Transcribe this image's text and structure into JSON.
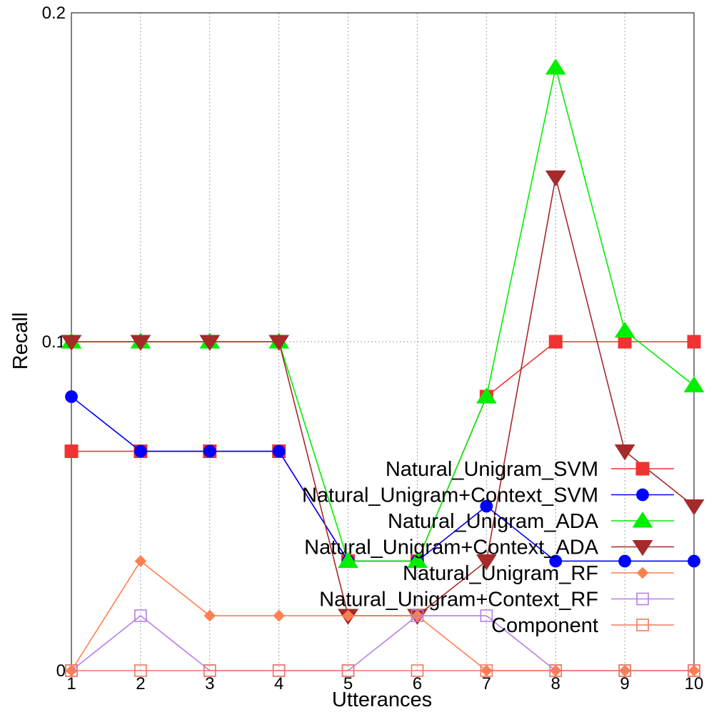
{
  "chart_data": {
    "type": "line",
    "title": "",
    "xlabel": "Utterances",
    "ylabel": "Recall",
    "x": [
      1,
      2,
      3,
      4,
      5,
      6,
      7,
      8,
      9,
      10
    ],
    "x_ticks": [
      "1",
      "2",
      "3",
      "4",
      "5",
      "6",
      "7",
      "8",
      "9",
      "10"
    ],
    "y_ticks": [
      "0",
      "0.1",
      "0.2"
    ],
    "xlim": [
      1,
      10
    ],
    "ylim": [
      0,
      0.2
    ],
    "grid": true,
    "legend_position": "bottom-right",
    "series": [
      {
        "name": "Natural_Unigram_SVM",
        "color": "#f03232",
        "marker": "square-filled",
        "values": [
          0.0667,
          0.0667,
          0.0667,
          0.0667,
          0.0333,
          0.0333,
          0.0833,
          0.1,
          0.1,
          0.1
        ]
      },
      {
        "name": "Natural_Unigram+Context_SVM",
        "color": "#0000ff",
        "marker": "circle-filled",
        "values": [
          0.0833,
          0.0667,
          0.0667,
          0.0667,
          0.0333,
          0.0333,
          0.05,
          0.0333,
          0.0333,
          0.0333
        ]
      },
      {
        "name": "Natural_Unigram_ADA",
        "color": "#00ee00",
        "marker": "triangle-up-filled",
        "values": [
          0.1,
          0.1,
          0.1,
          0.1,
          0.0333,
          0.0333,
          0.0833,
          0.1833,
          0.1033,
          0.0867
        ]
      },
      {
        "name": "Natural_Unigram+Context_ADA",
        "color": "#a52a2a",
        "marker": "triangle-down-filled",
        "values": [
          0.1,
          0.1,
          0.1,
          0.1,
          0.0167,
          0.0167,
          0.0333,
          0.15,
          0.0667,
          0.05
        ]
      },
      {
        "name": "Natural_Unigram_RF",
        "color": "#ff7f50",
        "marker": "diamond-filled",
        "values": [
          0,
          0.0333,
          0.0167,
          0.0167,
          0.0167,
          0.0167,
          0,
          0,
          0,
          0
        ]
      },
      {
        "name": "Natural_Unigram+Context_RF",
        "color": "#b57ee8",
        "marker": "square-open",
        "values": [
          0,
          0.0167,
          0,
          0,
          0,
          0.0167,
          0.0167,
          0,
          0,
          0
        ]
      },
      {
        "name": "Component",
        "color": "#f07860",
        "marker": "square-open",
        "values": [
          0,
          0,
          0,
          0,
          0,
          0,
          0,
          0,
          0,
          0
        ]
      }
    ]
  }
}
